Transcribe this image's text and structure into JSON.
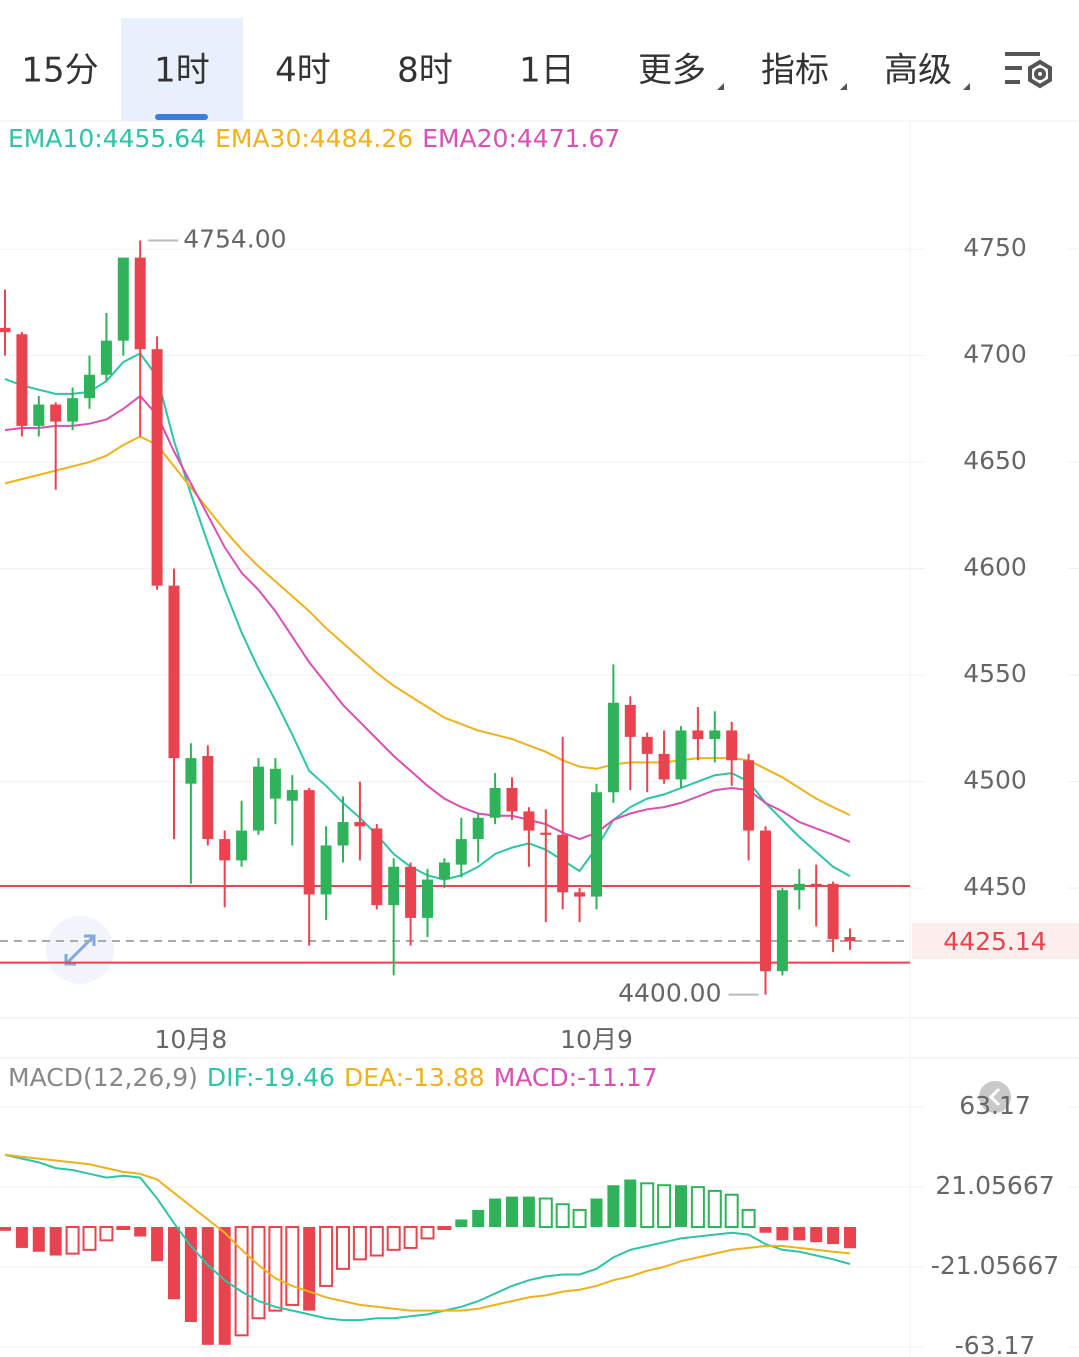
{
  "tabs": [
    "15分",
    "1时",
    "4时",
    "8时",
    "1日",
    "更多",
    "指标",
    "高级"
  ],
  "active_tab": 1,
  "chart_data": [
    {
      "type": "candlestick",
      "legend_position": "top-left",
      "categories": [
        null,
        null,
        null,
        null,
        null,
        null,
        null,
        null,
        null,
        null,
        null,
        "10月8",
        null,
        null,
        null,
        null,
        null,
        null,
        null,
        null,
        null,
        null,
        null,
        null,
        null,
        null,
        null,
        null,
        null,
        null,
        null,
        null,
        null,
        null,
        null,
        "10月9",
        null,
        null,
        null,
        null,
        null,
        null,
        null,
        null,
        null,
        null,
        null,
        null,
        null,
        null,
        null
      ],
      "open": [
        4713,
        4710,
        4667,
        4677,
        4669,
        4680,
        4691,
        4707,
        4746,
        4703,
        4592,
        4499,
        4512,
        4473,
        4463,
        4477,
        4492,
        4491,
        4496,
        4447,
        4470,
        4481,
        4478,
        4442,
        4460,
        4436,
        4454,
        4461,
        4473,
        4483,
        4497,
        4486,
        4476,
        4475,
        4448,
        4446,
        4495,
        4536,
        4521,
        4513,
        4501,
        4524,
        4520,
        4524,
        4510,
        4477,
        4411,
        4449,
        4452,
        4452,
        4427
      ],
      "high": [
        4731,
        4711,
        4681,
        4678,
        4685,
        4700,
        4720,
        4746,
        4754,
        4709,
        4600,
        4518,
        4517,
        4477,
        4491,
        4511,
        4511,
        4503,
        4497,
        4479,
        4493,
        4500,
        4480,
        4464,
        4462,
        4459,
        4464,
        4483,
        4485,
        4504,
        4502,
        4488,
        4487,
        4521,
        4450,
        4499,
        4555,
        4540,
        4523,
        4524,
        4526,
        4535,
        4533,
        4528,
        4513,
        4479,
        4450,
        4459,
        4461,
        4453,
        4431
      ],
      "low": [
        4700,
        4662,
        4662,
        4637,
        4665,
        4675,
        4688,
        4700,
        4662,
        4590,
        4473,
        4452,
        4470,
        4441,
        4460,
        4475,
        4480,
        4470,
        4423,
        4435,
        4462,
        4463,
        4440,
        4409,
        4423,
        4427,
        4450,
        4455,
        4462,
        4480,
        4482,
        4460,
        4434,
        4440,
        4434,
        4440,
        4490,
        4496,
        4495,
        4499,
        4497,
        4510,
        4509,
        4498,
        4463,
        4400,
        4409,
        4440,
        4432,
        4420,
        4421
      ],
      "close": [
        4711,
        4667,
        4677,
        4669,
        4680,
        4691,
        4707,
        4746,
        4703,
        4592,
        4511,
        4511,
        4473,
        4463,
        4477,
        4507,
        4506,
        4496,
        4447,
        4470,
        4481,
        4479,
        4442,
        4460,
        4436,
        4454,
        4462,
        4473,
        4483,
        4497,
        4486,
        4477,
        4475,
        4448,
        4446,
        4495,
        4537,
        4521,
        4513,
        4501,
        4524,
        4520,
        4524,
        4510,
        4477,
        4411,
        4449,
        4452,
        4451,
        4426,
        4425.14
      ],
      "up_color": "#2fb35a",
      "down_color": "#e8434f",
      "series": [
        {
          "name": "EMA10:4455.64",
          "color": "#2ec4a6",
          "values": [
            4689,
            4686,
            4684,
            4682,
            4682,
            4683,
            4688,
            4697,
            4701,
            4690,
            4660,
            4635,
            4612,
            4590,
            4570,
            4553,
            4538,
            4522,
            4505,
            4498,
            4490,
            4483,
            4475,
            4466,
            4460,
            4456,
            4454,
            4456,
            4460,
            4466,
            4469,
            4471,
            4468,
            4463,
            4458,
            4469,
            4482,
            4488,
            4492,
            4494,
            4497,
            4500,
            4503,
            4504,
            4500,
            4490,
            4482,
            4474,
            4467,
            4460,
            4455.64
          ]
        },
        {
          "name": "EMA30:4484.26",
          "color": "#f0b21c",
          "values": [
            4640,
            4642,
            4644,
            4646,
            4648,
            4650,
            4653,
            4658,
            4662,
            4658,
            4648,
            4638,
            4628,
            4618,
            4609,
            4601,
            4594,
            4587,
            4580,
            4572,
            4565,
            4558,
            4551,
            4545,
            4540,
            4535,
            4530,
            4527,
            4524,
            4522,
            4520,
            4517,
            4514,
            4510,
            4507,
            4506,
            4508,
            4509,
            4509,
            4509,
            4510,
            4511,
            4511,
            4511,
            4510,
            4506,
            4502,
            4497,
            4492,
            4488,
            4484.26
          ]
        },
        {
          "name": "EMA20:4471.67",
          "color": "#d94fb4",
          "values": [
            4665,
            4666,
            4666,
            4667,
            4667,
            4668,
            4670,
            4675,
            4681,
            4672,
            4655,
            4640,
            4625,
            4610,
            4598,
            4590,
            4580,
            4568,
            4556,
            4546,
            4536,
            4528,
            4520,
            4512,
            4505,
            4498,
            4492,
            4488,
            4485,
            4484,
            4484,
            4482,
            4480,
            4476,
            4473,
            4476,
            4482,
            4485,
            4487,
            4488,
            4490,
            4493,
            4496,
            4497,
            4496,
            4490,
            4486,
            4481,
            4478,
            4475,
            4471.67
          ]
        }
      ],
      "ylim": [
        4389,
        4810.6
      ],
      "yticks": [
        4450,
        4500,
        4550,
        4600,
        4650,
        4700,
        4750
      ],
      "grid": true,
      "hlines": [
        4451,
        4415
      ],
      "hline_color": "#e8434f",
      "last_price": 4425.14,
      "annotations": [
        {
          "index": 8,
          "value": 4754,
          "label": "4754.00"
        },
        {
          "index": 45,
          "value": 4400,
          "label": "4400.00"
        }
      ]
    },
    {
      "type": "macd",
      "title": "MACD(12,26,9)",
      "histogram": {
        "name": "MACD:-11.17",
        "color": "#d94fb4",
        "up_color": "#2fb35a",
        "down_color": "#e8434f",
        "values": [
          -2,
          -11,
          -13,
          -15,
          -14,
          -12,
          -7,
          -1,
          -5,
          -18,
          -38,
          -50,
          -62,
          -62,
          -57,
          -48,
          -44,
          -41,
          -44,
          -31,
          -22,
          -17,
          -15,
          -12,
          -11,
          -6,
          -1,
          4,
          9,
          15,
          16,
          16,
          15,
          12,
          9,
          15,
          22,
          25,
          23,
          22,
          22,
          21,
          19,
          17,
          9,
          -3,
          -7,
          -7,
          -8,
          -9,
          -11.17
        ]
      },
      "series": [
        {
          "name": "DIF:-19.46",
          "color": "#2ec4a6",
          "values": [
            38,
            36,
            34,
            31,
            30,
            28,
            26,
            27,
            26,
            15,
            2,
            -10,
            -20,
            -28,
            -34,
            -39,
            -42,
            -44,
            -46,
            -48,
            -49,
            -49,
            -48,
            -48,
            -47,
            -46,
            -44,
            -42,
            -39,
            -35,
            -31,
            -28,
            -26,
            -25,
            -25,
            -22,
            -16,
            -12,
            -10,
            -8,
            -6,
            -5,
            -4,
            -3,
            -4,
            -9,
            -12,
            -13,
            -15,
            -17,
            -19.46
          ]
        },
        {
          "name": "DEA:-13.88",
          "color": "#f0b21c",
          "values": [
            38,
            37,
            36,
            35,
            34,
            33,
            31,
            29,
            28,
            25,
            18,
            11,
            4,
            -3,
            -12,
            -20,
            -27,
            -31,
            -34,
            -37,
            -39,
            -41,
            -42,
            -43,
            -44,
            -44,
            -44,
            -44,
            -43,
            -41,
            -39,
            -37,
            -36,
            -34,
            -33,
            -31,
            -28,
            -26,
            -23,
            -21,
            -18,
            -16,
            -14,
            -12,
            -11,
            -10,
            -10,
            -11,
            -12,
            -13,
            -13.88
          ]
        }
      ],
      "ylim": [
        -68.4,
        87.9
      ],
      "yticks": [
        63.17,
        21.05667,
        -21.05667,
        -63.17
      ],
      "grid": true
    }
  ]
}
